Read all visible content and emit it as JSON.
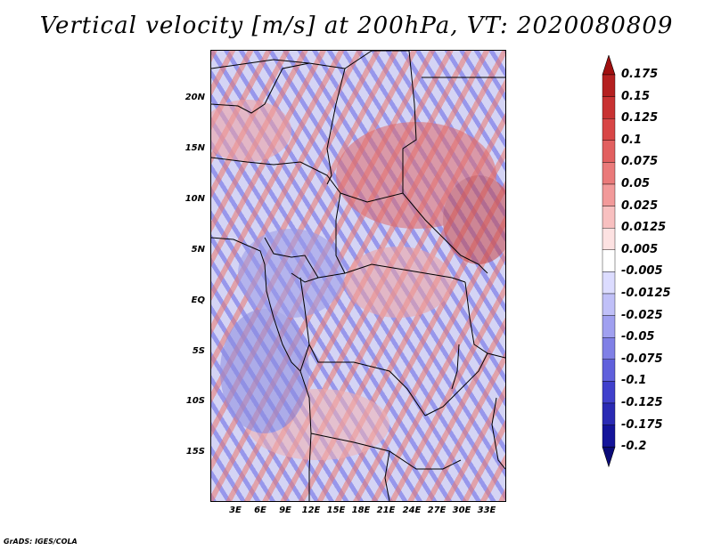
{
  "title": "Vertical velocity [m/s] at 200hPa, VT: 2020080809",
  "credit": "GrADS: IGES/COLA",
  "lat_labels": [
    "20N",
    "15N",
    "10N",
    "5N",
    "EQ",
    "5S",
    "10S",
    "15S"
  ],
  "lon_labels": [
    "3E",
    "6E",
    "9E",
    "12E",
    "15E",
    "18E",
    "21E",
    "24E",
    "27E",
    "30E",
    "33E"
  ],
  "colorbar": {
    "labels": [
      "0.175",
      "0.15",
      "0.125",
      "0.1",
      "0.075",
      "0.05",
      "0.025",
      "0.0125",
      "0.005",
      "-0.005",
      "-0.0125",
      "-0.025",
      "-0.05",
      "-0.075",
      "-0.1",
      "-0.125",
      "-0.175",
      "-0.2"
    ],
    "colors": [
      "#a01010",
      "#b42020",
      "#c83232",
      "#d84646",
      "#e26060",
      "#ea7a7a",
      "#f29a9a",
      "#f8c0c0",
      "#fde2e2",
      "#ffffff",
      "#dcdcff",
      "#c0c0f8",
      "#a0a0f0",
      "#8080e6",
      "#6060dc",
      "#4040cc",
      "#2a2ab4",
      "#14149a",
      "#0a0a78"
    ]
  }
}
